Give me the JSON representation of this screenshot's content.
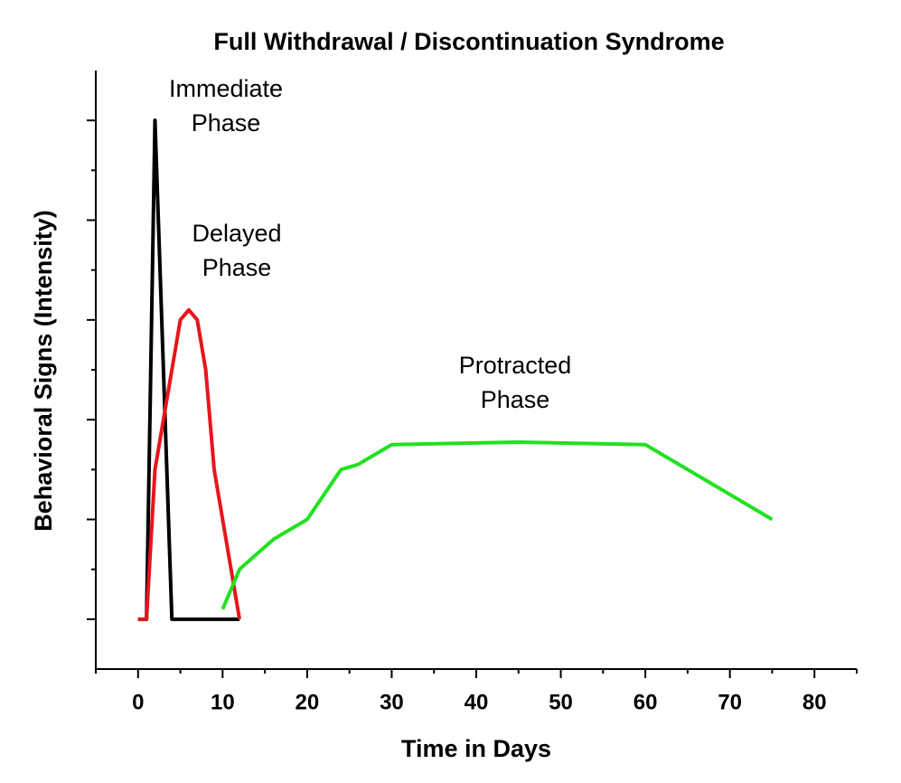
{
  "chart_data": {
    "type": "line",
    "title": "Full Withdrawal / Discontinuation Syndrome",
    "xlabel": "Time in Days",
    "ylabel": "Behavioral Signs (Intensity)",
    "xlim": [
      -5,
      85
    ],
    "ylim": [
      -1,
      11
    ],
    "xticks": [
      0,
      10,
      20,
      30,
      40,
      50,
      60,
      70,
      80
    ],
    "xticks_minor": [
      -5,
      5,
      15,
      25,
      35,
      45,
      55,
      65,
      75,
      85
    ],
    "yticks": [
      0,
      2,
      4,
      6,
      8,
      10
    ],
    "yticks_minor": [
      1,
      3,
      5,
      7,
      9
    ],
    "series": [
      {
        "color": "#000000",
        "x": [
          0,
          1,
          2,
          4,
          12
        ],
        "values": [
          0,
          0,
          10,
          0,
          0
        ]
      },
      {
        "color": "#e8141c",
        "x": [
          0,
          1,
          2,
          5,
          6,
          7,
          8,
          9,
          12
        ],
        "values": [
          0,
          0,
          3,
          6,
          6.2,
          6,
          5,
          3,
          0
        ]
      },
      {
        "color": "#22e022",
        "x": [
          10,
          12,
          14,
          16,
          20,
          24,
          26,
          30,
          45,
          60,
          75
        ],
        "values": [
          0.2,
          1,
          1.3,
          1.6,
          2,
          3,
          3.1,
          3.5,
          3.55,
          3.5,
          2
        ]
      }
    ],
    "annotations": [
      {
        "lines": [
          "Immediate",
          "Phase"
        ]
      },
      {
        "lines": [
          "Delayed",
          "Phase"
        ]
      },
      {
        "lines": [
          "Protracted",
          "Phase"
        ]
      }
    ]
  }
}
